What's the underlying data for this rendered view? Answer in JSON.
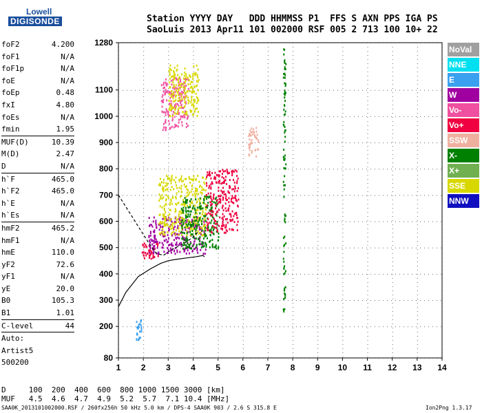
{
  "logo": {
    "line1": "Lowell",
    "line2": "DIGISONDE"
  },
  "header": {
    "row1": "Station YYYY DAY   DDD HHMMSS P1  FFS S AXN PPS IGA PS",
    "row2": "SaoLuis 2013 Apr11 101 002000 RSF 005 2 713 100 10+ 22"
  },
  "params": [
    {
      "k": "foF2",
      "v": "4.200"
    },
    {
      "k": "foF1",
      "v": "N/A"
    },
    {
      "k": "foF1p",
      "v": "N/A"
    },
    {
      "k": "foE",
      "v": "N/A"
    },
    {
      "k": "foEp",
      "v": "0.48"
    },
    {
      "k": "fxI",
      "v": "4.80"
    },
    {
      "k": "foEs",
      "v": "N/A"
    },
    {
      "k": "fmin",
      "v": "1.95"
    },
    {
      "k": "MUF(D)",
      "v": "10.39",
      "sep": true
    },
    {
      "k": "M(D)",
      "v": "2.47"
    },
    {
      "k": "D",
      "v": "N/A"
    },
    {
      "k": "h`F",
      "v": "465.0",
      "sep": true
    },
    {
      "k": "h`F2",
      "v": "465.0"
    },
    {
      "k": "h`E",
      "v": "N/A"
    },
    {
      "k": "h`Es",
      "v": "N/A"
    },
    {
      "k": "hmF2",
      "v": "465.2",
      "sep": true
    },
    {
      "k": "hmF1",
      "v": "N/A"
    },
    {
      "k": "hmE",
      "v": "110.0"
    },
    {
      "k": "yF2",
      "v": "72.6"
    },
    {
      "k": "yF1",
      "v": "N/A"
    },
    {
      "k": "yE",
      "v": "20.0"
    },
    {
      "k": "B0",
      "v": "105.3"
    },
    {
      "k": "B1",
      "v": "1.01"
    },
    {
      "k": "C-level",
      "v": "44",
      "sep": true
    },
    {
      "k": "Auto:",
      "v": "",
      "sep": true
    },
    {
      "k": "Artist5",
      "v": ""
    },
    {
      "k": "500200",
      "v": ""
    }
  ],
  "legend": [
    {
      "label": "NoVal",
      "color": "#a0a0a0"
    },
    {
      "label": "NNE",
      "color": "#00e0f0"
    },
    {
      "label": "E",
      "color": "#3aa0f0"
    },
    {
      "label": "W",
      "color": "#a000a0"
    },
    {
      "label": "Vo-",
      "color": "#f050a0"
    },
    {
      "label": "Vo+",
      "color": "#f00040"
    },
    {
      "label": "SSW",
      "color": "#f0b0a0"
    },
    {
      "label": "X-",
      "color": "#008000"
    },
    {
      "label": "X+",
      "color": "#70b050"
    },
    {
      "label": "SSE",
      "color": "#d8d800"
    },
    {
      "label": "NNW",
      "color": "#1010c0"
    }
  ],
  "bottom": {
    "d_row": "D     100  200  400  600  800 1000 1500 3000 [km]",
    "muf_row": "MUF   4.5  4.6  4.7  4.9  5.2  5.7  7.1 10.4 [MHz]",
    "footer_left": "SAA0K_2013101002000.RSF / 260fx256h 50 kHz 5.0 km / DPS-4 SAA0K 903 / 2.6 S 315.8 E",
    "footer_right": "Ion2Png 1.3.17"
  },
  "chart_data": {
    "type": "scatter",
    "x_ticks": [
      1,
      2,
      3,
      4,
      5,
      6,
      7,
      8,
      9,
      10,
      11,
      12,
      13,
      14
    ],
    "y_ticks": [
      80,
      200,
      300,
      400,
      500,
      600,
      700,
      800,
      900,
      1000,
      1100,
      1280
    ],
    "xlim": [
      1,
      14
    ],
    "ylim": [
      80,
      1280
    ],
    "series": [
      {
        "clusters": [
          {
            "x": [
              1.9,
              2.6
            ],
            "y": [
              460,
              520
            ],
            "color": "#f00040"
          },
          {
            "x": [
              2.2,
              4.5
            ],
            "y": [
              480,
              620
            ],
            "color": "#a000a0"
          },
          {
            "x": [
              2.6,
              4.5
            ],
            "y": [
              550,
              780
            ],
            "color": "#d8d800"
          },
          {
            "x": [
              3.5,
              5.0
            ],
            "y": [
              500,
              700
            ],
            "color": "#008000"
          },
          {
            "x": [
              4.5,
              5.8
            ],
            "y": [
              560,
              800
            ],
            "color": "#f00040"
          },
          {
            "x": [
              2.7,
              3.8
            ],
            "y": [
              950,
              1150
            ],
            "color": "#f050a0"
          },
          {
            "x": [
              3.0,
              4.2
            ],
            "y": [
              1000,
              1200
            ],
            "color": "#d8d800"
          },
          {
            "x": [
              6.2,
              6.6
            ],
            "y": [
              850,
              960
            ],
            "color": "#f0b0a0"
          },
          {
            "x": [
              7.6,
              7.7
            ],
            "y": [
              260,
              1260
            ],
            "color": "#008000"
          },
          {
            "x": [
              1.7,
              1.9
            ],
            "y": [
              150,
              230
            ],
            "color": "#3aa0f0"
          }
        ]
      }
    ],
    "curve_trace": {
      "x": [
        1.0,
        1.3,
        1.8,
        2.3,
        2.7,
        3.0,
        3.3,
        3.7,
        4.1,
        4.4,
        4.45
      ],
      "y": [
        275,
        330,
        390,
        420,
        440,
        450,
        455,
        460,
        465,
        470,
        465
      ]
    },
    "dashed_trace": {
      "x": [
        1.0,
        1.4,
        1.8,
        2.2,
        2.5,
        2.8,
        3.1,
        3.4,
        3.7,
        4.0,
        4.2
      ],
      "y": [
        700,
        640,
        580,
        520,
        480,
        470,
        490,
        505,
        520,
        540,
        560
      ]
    }
  }
}
